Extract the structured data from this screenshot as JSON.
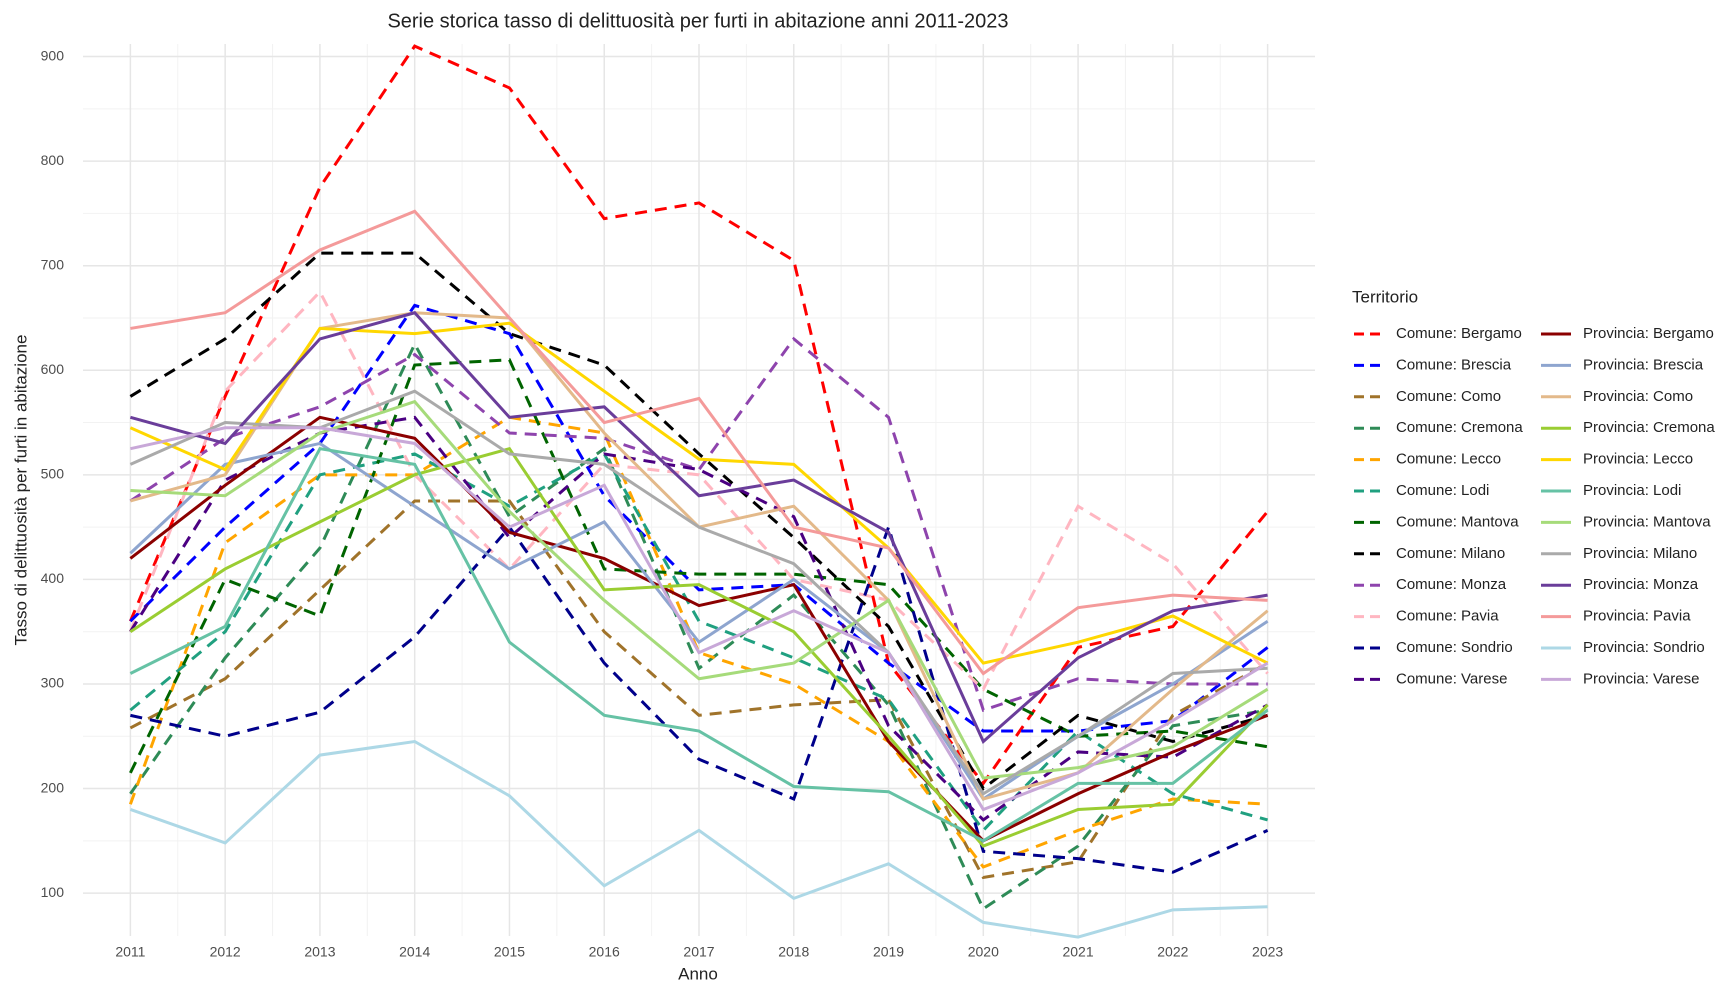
{
  "chart_data": {
    "type": "line",
    "title": "Serie storica tasso di delittuosità per furti in abitazione anni 2011-2023",
    "x_label": "Anno",
    "y_label": "Tasso di delittuosità per furti in abitazione",
    "legend_title": "Territorio",
    "legend": "right",
    "grid": true,
    "x": [
      2011,
      2012,
      2013,
      2014,
      2015,
      2016,
      2017,
      2018,
      2019,
      2020,
      2021,
      2022,
      2023
    ],
    "xlim": [
      2010.5,
      2023.5
    ],
    "xticks": [
      2011,
      2012,
      2013,
      2014,
      2015,
      2016,
      2017,
      2018,
      2019,
      2020,
      2021,
      2022,
      2023
    ],
    "ylim": [
      59,
      912
    ],
    "yticks": [
      100,
      200,
      300,
      400,
      500,
      600,
      700,
      800,
      900
    ],
    "series": [
      {
        "name": "Comune: Bergamo",
        "color": "#ff0000",
        "linetype": "dashed",
        "values": [
          360,
          575,
          775,
          910,
          870,
          745,
          760,
          705,
          320,
          205,
          335,
          355,
          465
        ]
      },
      {
        "name": "Comune: Brescia",
        "color": "#0000ff",
        "linetype": "dashed",
        "values": [
          360,
          450,
          530,
          662,
          635,
          480,
          390,
          395,
          320,
          255,
          255,
          265,
          335
        ]
      },
      {
        "name": "Comune: Como",
        "color": "#a0732a",
        "linetype": "dashed",
        "values": [
          258,
          305,
          390,
          475,
          475,
          350,
          270,
          280,
          285,
          115,
          130,
          270,
          320
        ]
      },
      {
        "name": "Comune: Cremona",
        "color": "#2e8b57",
        "linetype": "dashed",
        "values": [
          195,
          325,
          430,
          625,
          460,
          525,
          315,
          385,
          280,
          85,
          145,
          260,
          275
        ]
      },
      {
        "name": "Comune: Lecco",
        "color": "#ffa500",
        "linetype": "dashed",
        "values": [
          185,
          435,
          500,
          500,
          555,
          540,
          330,
          300,
          245,
          125,
          160,
          190,
          185
        ]
      },
      {
        "name": "Comune: Lodi",
        "color": "#20a080",
        "linetype": "dashed",
        "values": [
          275,
          350,
          500,
          520,
          470,
          520,
          360,
          325,
          285,
          160,
          255,
          195,
          170
        ]
      },
      {
        "name": "Comune: Mantova",
        "color": "#006400",
        "linetype": "dashed",
        "values": [
          215,
          400,
          365,
          605,
          610,
          410,
          405,
          405,
          395,
          295,
          250,
          255,
          240
        ]
      },
      {
        "name": "Comune: Milano",
        "color": "#000000",
        "linetype": "dashed",
        "values": [
          575,
          630,
          712,
          712,
          635,
          605,
          520,
          440,
          355,
          200,
          270,
          245,
          270
        ]
      },
      {
        "name": "Comune: Monza",
        "color": "#8e44ad",
        "linetype": "dashed",
        "values": [
          475,
          535,
          565,
          615,
          540,
          535,
          505,
          630,
          555,
          275,
          305,
          300,
          300
        ]
      },
      {
        "name": "Comune: Pavia",
        "color": "#ffb6c1",
        "linetype": "dashed",
        "values": [
          350,
          580,
          675,
          500,
          410,
          510,
          500,
          400,
          380,
          295,
          470,
          415,
          310
        ]
      },
      {
        "name": "Comune: Sondrio",
        "color": "#00008b",
        "linetype": "dashed",
        "values": [
          270,
          250,
          273,
          345,
          450,
          320,
          228,
          190,
          450,
          140,
          133,
          120,
          160
        ]
      },
      {
        "name": "Comune: Varese",
        "color": "#4b0082",
        "linetype": "dashed",
        "values": [
          350,
          495,
          540,
          555,
          440,
          520,
          505,
          460,
          260,
          170,
          235,
          230,
          280
        ]
      },
      {
        "name": "Provincia: Bergamo",
        "color": "#8b0000",
        "linetype": "solid",
        "values": [
          420,
          490,
          555,
          535,
          445,
          420,
          375,
          395,
          245,
          150,
          195,
          235,
          270
        ]
      },
      {
        "name": "Provincia: Brescia",
        "color": "#8ea5cf",
        "linetype": "solid",
        "values": [
          425,
          510,
          530,
          470,
          410,
          455,
          340,
          400,
          330,
          190,
          250,
          300,
          360
        ]
      },
      {
        "name": "Provincia: Como",
        "color": "#e3b98a",
        "linetype": "solid",
        "values": [
          475,
          500,
          640,
          655,
          650,
          540,
          450,
          470,
          380,
          190,
          215,
          295,
          370
        ]
      },
      {
        "name": "Provincia: Cremona",
        "color": "#9acd32",
        "linetype": "solid",
        "values": [
          350,
          410,
          455,
          500,
          525,
          390,
          395,
          350,
          250,
          145,
          180,
          185,
          280
        ]
      },
      {
        "name": "Provincia: Lecco",
        "color": "#ffd700",
        "linetype": "solid",
        "values": [
          545,
          505,
          640,
          635,
          645,
          580,
          515,
          510,
          430,
          320,
          340,
          365,
          320
        ]
      },
      {
        "name": "Provincia: Lodi",
        "color": "#66c2a5",
        "linetype": "solid",
        "values": [
          310,
          355,
          525,
          510,
          340,
          270,
          255,
          202,
          197,
          150,
          205,
          205,
          275
        ]
      },
      {
        "name": "Provincia: Mantova",
        "color": "#a6db7a",
        "linetype": "solid",
        "values": [
          485,
          480,
          540,
          570,
          465,
          380,
          305,
          320,
          380,
          210,
          220,
          240,
          295
        ]
      },
      {
        "name": "Provincia: Milano",
        "color": "#aaaaaa",
        "linetype": "solid",
        "values": [
          510,
          550,
          545,
          580,
          520,
          510,
          450,
          415,
          330,
          195,
          250,
          310,
          315
        ]
      },
      {
        "name": "Provincia: Monza",
        "color": "#6a3d9a",
        "linetype": "solid",
        "values": [
          555,
          530,
          630,
          655,
          555,
          565,
          480,
          495,
          445,
          245,
          325,
          370,
          385
        ]
      },
      {
        "name": "Provincia: Pavia",
        "color": "#f49a9a",
        "linetype": "solid",
        "values": [
          640,
          655,
          715,
          752,
          650,
          550,
          573,
          450,
          430,
          310,
          373,
          385,
          380
        ]
      },
      {
        "name": "Provincia: Sondrio",
        "color": "#add8e6",
        "linetype": "solid",
        "values": [
          180,
          148,
          232,
          245,
          193,
          107,
          160,
          95,
          128,
          72,
          58,
          84,
          87
        ]
      },
      {
        "name": "Provincia: Varese",
        "color": "#c8a8d8",
        "linetype": "solid",
        "values": [
          525,
          545,
          545,
          530,
          450,
          490,
          330,
          370,
          330,
          180,
          215,
          265,
          320
        ]
      }
    ]
  }
}
